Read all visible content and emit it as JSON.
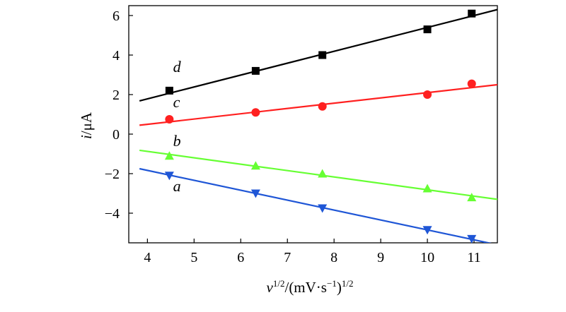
{
  "chart_data": {
    "type": "scatter",
    "title": "",
    "xlabel": {
      "var": "v",
      "var_sup": "1/2",
      "rest": "/(mV·s",
      "rest_sup": "−1",
      "close": ")",
      "close_sup": "1/2"
    },
    "ylabel": {
      "var": "i",
      "rest": "/μA"
    },
    "xlim": [
      3.6,
      11.5
    ],
    "ylim": [
      -5.5,
      6.5
    ],
    "xticks": [
      4,
      5,
      6,
      7,
      8,
      9,
      10,
      11
    ],
    "yticks": [
      -4,
      -2,
      0,
      2,
      4,
      6
    ],
    "xtick_labels": [
      "4",
      "5",
      "6",
      "7",
      "8",
      "9",
      "10",
      "11"
    ],
    "ytick_labels": [
      "−4",
      "−2",
      "0",
      "2",
      "4",
      "6"
    ],
    "grid": false,
    "legend": "none",
    "series": [
      {
        "name": "d",
        "color": "#000000",
        "marker": "square",
        "x": [
          4.47,
          6.32,
          7.75,
          10.0,
          10.95
        ],
        "y": [
          2.2,
          3.2,
          4.0,
          5.3,
          6.1
        ],
        "fit": {
          "x": [
            3.83,
            11.5
          ],
          "y": [
            1.68,
            6.3
          ]
        },
        "label_pos": {
          "x": 4.55,
          "y": 3.15
        }
      },
      {
        "name": "c",
        "color": "#ff2020",
        "marker": "circle",
        "x": [
          4.47,
          6.32,
          7.75,
          10.0,
          10.95
        ],
        "y": [
          0.75,
          1.1,
          1.4,
          2.0,
          2.55
        ],
        "fit": {
          "x": [
            3.83,
            11.5
          ],
          "y": [
            0.45,
            2.5
          ]
        },
        "label_pos": {
          "x": 4.55,
          "y": 1.35
        }
      },
      {
        "name": "b",
        "color": "#66ff33",
        "marker": "triangle-up",
        "x": [
          4.47,
          6.32,
          7.75,
          10.0,
          10.95
        ],
        "y": [
          -1.1,
          -1.6,
          -2.0,
          -2.75,
          -3.2
        ],
        "fit": {
          "x": [
            3.83,
            11.5
          ],
          "y": [
            -0.82,
            -3.3
          ]
        },
        "label_pos": {
          "x": 4.55,
          "y": -0.6
        }
      },
      {
        "name": "a",
        "color": "#1f56d6",
        "marker": "triangle-down",
        "x": [
          4.47,
          6.32,
          7.75,
          10.0,
          10.95
        ],
        "y": [
          -2.1,
          -3.0,
          -3.75,
          -4.85,
          -5.3
        ],
        "fit": {
          "x": [
            3.83,
            11.5
          ],
          "y": [
            -1.75,
            -5.6
          ]
        },
        "label_pos": {
          "x": 4.55,
          "y": -2.9
        }
      }
    ]
  }
}
